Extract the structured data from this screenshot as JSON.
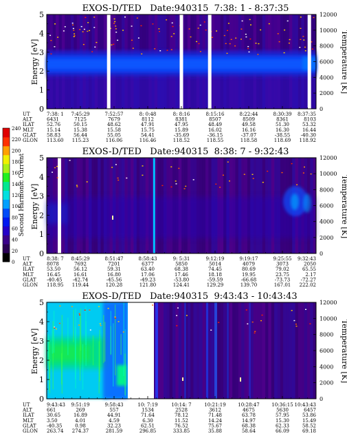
{
  "chart_data": [
    {
      "type": "heatmap",
      "title": "EXOS-D/TED   Date:940315  7:38: 1 - 8:37:35",
      "ylabel": "Energy [eV]",
      "y2label": "Temperature [K]",
      "ylim": [
        0,
        5
      ],
      "y2lim": [
        0,
        12000
      ],
      "yticks": [
        "0",
        "1",
        "2",
        "3",
        "4",
        "5"
      ],
      "y2ticks": [
        "0",
        "2000",
        "4000",
        "6000",
        "8000",
        "10000",
        "12000"
      ],
      "band_energy_ev": [
        2.0,
        3.0
      ],
      "gap_positions": [
        0.23,
        0.5,
        0.605,
        0.975
      ],
      "table": {
        "rows": [
          "UT",
          "ALT",
          "ILAT",
          "MLT",
          "GLAT",
          "GLON"
        ],
        "columns": [
          [
            "7:38: 1",
            "6431",
            "52.76",
            "15.14",
            "58.83",
            "113.60"
          ],
          [
            "7:45:29",
            "7125",
            "50.15",
            "15.38",
            "56.44",
            "115.23"
          ],
          [
            "7:52:57",
            "7679",
            "48.62",
            "15.58",
            "55.05",
            "116.06"
          ],
          [
            "8: 0:48",
            "8112",
            "47.91",
            "15.75",
            "54.41",
            "116.46"
          ],
          [
            "8: 8:16",
            "8381",
            "47.95",
            "15.89",
            "-35.69",
            "118.52"
          ],
          [
            "8:15:16",
            "8507",
            "48.49",
            "16.02",
            "-36.15",
            "118.55"
          ],
          [
            "8:22:44",
            "8509",
            "49.58",
            "16.16",
            "-37.07",
            "118.58"
          ],
          [
            "8:30:39",
            "8361",
            "51.30",
            "16.30",
            "-38.55",
            "118.69"
          ],
          [
            "8:37:35",
            "8103",
            "53.32",
            "16.44",
            "-40.30",
            "118.92"
          ]
        ]
      }
    },
    {
      "type": "heatmap",
      "title": "EXOS-D/TED   Date:940315  8:38: 7 - 9:32:43",
      "ylabel": "Energy [eV]",
      "y2label": "Temperature [K]",
      "ylim": [
        0,
        5
      ],
      "y2lim": [
        0,
        12000
      ],
      "yticks": [
        "0",
        "1",
        "2",
        "3",
        "4",
        "5"
      ],
      "y2ticks": [
        "0",
        "2000",
        "4000",
        "6000",
        "8000",
        "10000",
        "12000"
      ],
      "bright_line_fraction": 0.395,
      "table": {
        "rows": [
          "UT",
          "ALT",
          "ILAT",
          "MLT",
          "GLAT",
          "GLON"
        ],
        "columns": [
          [
            "8:38: 7",
            "8078",
            "53.50",
            "16.45",
            "-40.45",
            "118.95"
          ],
          [
            "8:45:29",
            "7692",
            "56.12",
            "16.61",
            "-42.74",
            "119.44"
          ],
          [
            "8:51:47",
            "7201",
            "59.31",
            "16.80",
            "-45.56",
            "120.28"
          ],
          [
            "8:58:43",
            "6377",
            "63.40",
            "17.06",
            "-49.23",
            "121.80"
          ],
          [
            "9: 5:31",
            "5850",
            "68.38",
            "17.46",
            "-53.80",
            "124.41"
          ],
          [
            "9:12:19",
            "5014",
            "74.45",
            "18.18",
            "-59.59",
            "129.29"
          ],
          [
            "9:19:17",
            "4079",
            "80.69",
            "19.95",
            "-66.68",
            "139.70"
          ],
          [
            "9:25:55",
            "3073",
            "79.02",
            "23.75",
            "-73.73",
            "167.01"
          ],
          [
            "9:32:43",
            "2050",
            "65.55",
            "2.17",
            "-72.27",
            "222.02"
          ]
        ]
      }
    },
    {
      "type": "heatmap",
      "title": "EXOS-D/TED   Date:940315  9:43:43 - 10:43:43",
      "ylabel": "Energy [eV]",
      "y2label": "Temperature [K]",
      "ylim": [
        0,
        5
      ],
      "y2lim": [
        0,
        12000
      ],
      "yticks": [
        "0",
        "1",
        "2",
        "3",
        "4",
        "5"
      ],
      "y2ticks": [
        "0",
        "2000",
        "4000",
        "6000",
        "8000",
        "10000",
        "12000"
      ],
      "table": {
        "rows": [
          "UT",
          "ALT",
          "ILAT",
          "MLT",
          "GLAT",
          "GLON"
        ],
        "columns": [
          [
            "9:43:43",
            "661",
            "30.65",
            "3.50",
            "-40.35",
            "263.74"
          ],
          [
            "9:51:19",
            "269",
            "16.89",
            "4.01",
            "0.98",
            "274.37"
          ],
          [
            "9:58:43",
            "557",
            "44.91",
            "4.59",
            "32.23",
            "281.59"
          ],
          [
            "10: 7:19",
            "1534",
            "71.64",
            "6.30",
            "62.51",
            "296.85"
          ],
          [
            "10:14: 7",
            "2528",
            "78.12",
            "11.52",
            "76.52",
            "333.85"
          ],
          [
            "10:21:19",
            "3612",
            "71.48",
            "14.24",
            "75.67",
            "35.88"
          ],
          [
            "10:28:47",
            "4675",
            "63.78",
            "14.97",
            "68.38",
            "58.64"
          ],
          [
            "10:36:15",
            "5630",
            "57.95",
            "15.30",
            "62.33",
            "66.09"
          ],
          [
            "10:43:43",
            "6457",
            "53.86",
            "15.49",
            "58.52",
            "69.18"
          ]
        ]
      }
    }
  ],
  "colorbar": {
    "label": "Second Harmonic Current",
    "ticks": [
      "0",
      "20",
      "40",
      "60",
      "80",
      "100",
      "120",
      "140",
      "160",
      "180",
      "200",
      "220",
      "240"
    ],
    "colors": [
      "#000000",
      "#2a0055",
      "#3a008a",
      "#2400c8",
      "#0019f0",
      "#004cf8",
      "#00a0ff",
      "#00e0e0",
      "#00e890",
      "#20f020",
      "#a8f018",
      "#f0f000",
      "#ffa000",
      "#ff3000",
      "#e00000"
    ]
  }
}
